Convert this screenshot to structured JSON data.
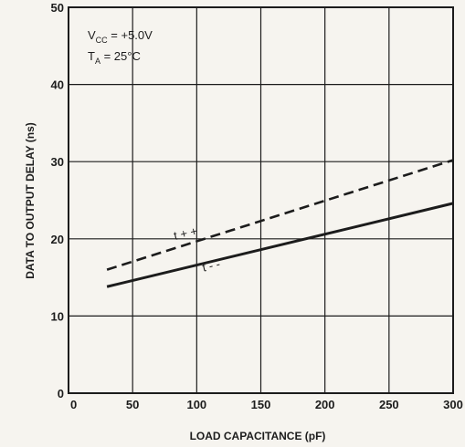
{
  "chart_data": {
    "type": "line",
    "xlabel": "LOAD CAPACITANCE (pF)",
    "ylabel": "DATA TO OUTPUT DELAY (ns)",
    "xlim": [
      0,
      300
    ],
    "ylim": [
      0,
      50
    ],
    "x_ticks": [
      0,
      50,
      100,
      150,
      200,
      250,
      300
    ],
    "y_ticks": [
      0,
      10,
      20,
      30,
      40,
      50
    ],
    "grid": true,
    "annotations": {
      "vcc_main": "V",
      "vcc_sub": "CC",
      "vcc_value": " = +5.0V",
      "ta_main": "T",
      "ta_sub": "A",
      "ta_value": " = 25°C"
    },
    "series": [
      {
        "name": "t + +",
        "style": "dashed",
        "x": [
          30,
          300
        ],
        "y": [
          16,
          30.2
        ]
      },
      {
        "name": "t - -",
        "style": "solid",
        "x": [
          30,
          300
        ],
        "y": [
          13.8,
          24.6
        ]
      }
    ]
  },
  "colors": {
    "background": "#f6f4ef",
    "ink": "#1c1c1c"
  }
}
